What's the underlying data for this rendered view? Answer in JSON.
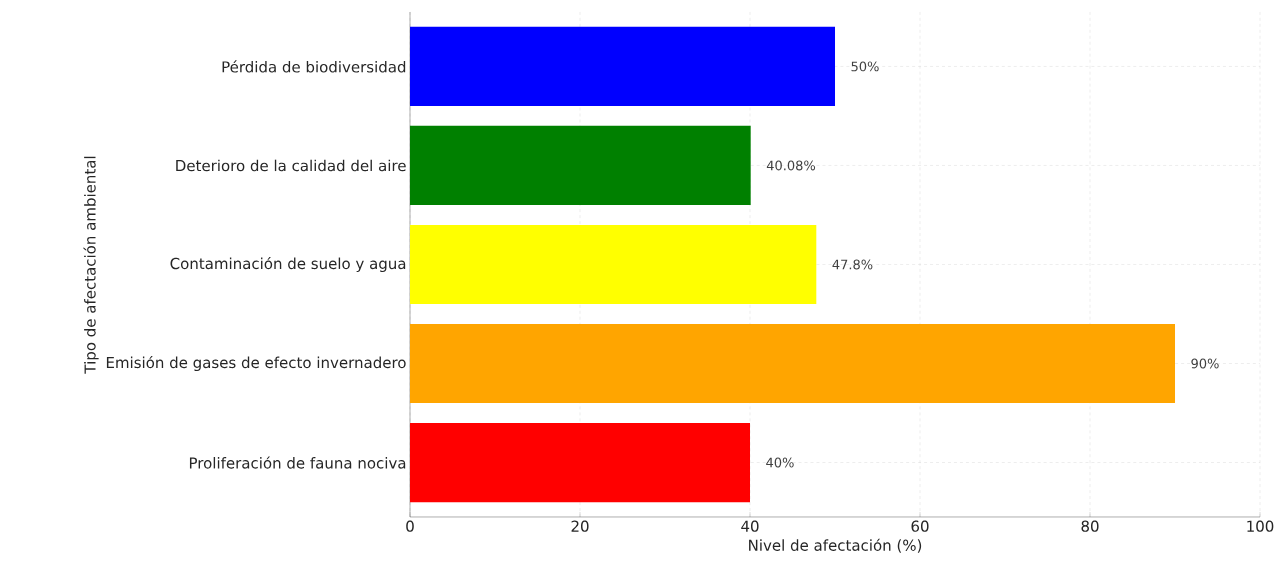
{
  "chart_data": {
    "type": "bar",
    "orientation": "horizontal",
    "xlabel": "Nivel de afectación (%)",
    "ylabel": "Tipo de afectación ambiental",
    "categories": [
      "Pérdida de biodiversidad",
      "Deterioro de la calidad del aire",
      "Contaminación de suelo y agua",
      "Emisión de gases de efecto invernadero",
      "Proliferación de fauna nociva"
    ],
    "values": [
      50,
      40.08,
      47.8,
      90,
      40
    ],
    "colors": [
      "#0000ff",
      "#008000",
      "#ffff00",
      "#ffa500",
      "#ff0000"
    ],
    "value_labels": [
      "50%",
      "40.08%",
      "47.8%",
      "90%",
      "40%"
    ],
    "xlim": [
      0,
      100
    ],
    "xticks": [
      0,
      20,
      40,
      60,
      80,
      100
    ],
    "grid": true
  }
}
